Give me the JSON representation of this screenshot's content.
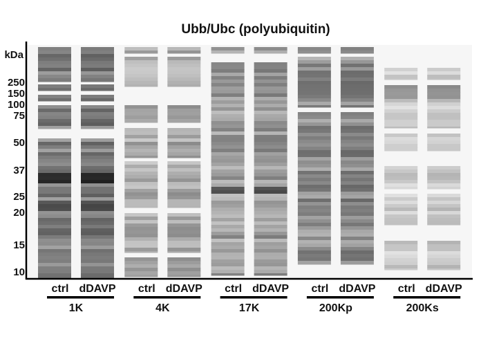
{
  "title": "Ubb/Ubc (polyubiquitin)",
  "y_axis": {
    "unit": "kDa",
    "labels": [
      "250",
      "150",
      "100",
      "75",
      "50",
      "37",
      "25",
      "20",
      "15",
      "10"
    ]
  },
  "groups": [
    {
      "name": "1K",
      "lanes": [
        "ctrl",
        "dDAVP"
      ]
    },
    {
      "name": "4K",
      "lanes": [
        "ctrl",
        "dDAVP"
      ]
    },
    {
      "name": "17K",
      "lanes": [
        "ctrl",
        "dDAVP"
      ]
    },
    {
      "name": "200Kp",
      "lanes": [
        "ctrl",
        "dDAVP"
      ]
    },
    {
      "name": "200Ks",
      "lanes": [
        "ctrl",
        "dDAVP"
      ]
    }
  ]
}
